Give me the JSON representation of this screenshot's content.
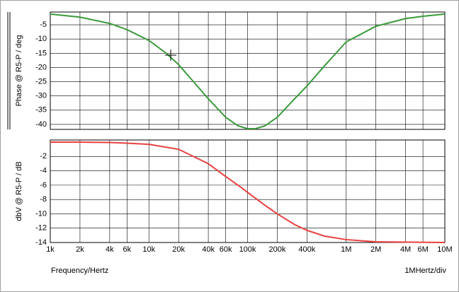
{
  "chart_data": [
    {
      "type": "line",
      "ylabel": "Phase @ R5-P / deg",
      "xscale": "log",
      "grid": true,
      "xlim": [
        1000,
        10000000
      ],
      "ylim": [
        -41.75,
        -0.5
      ],
      "yticks": [
        -5,
        -10,
        -15,
        -20,
        -25,
        -30,
        -35,
        -40
      ],
      "x": [
        1000,
        2000,
        4000,
        6000,
        10000,
        15000,
        20000,
        30000,
        40000,
        60000,
        80000,
        100000,
        120000,
        150000,
        200000,
        300000,
        400000,
        600000,
        1000000,
        2000000,
        4000000,
        6000000,
        10000000
      ],
      "series": [
        {
          "color": "#3a9a3a",
          "values": [
            -1.2,
            -2.3,
            -4.5,
            -6.7,
            -10.5,
            -15,
            -19,
            -26,
            -31,
            -37.5,
            -40.5,
            -41.5,
            -41.5,
            -40.5,
            -37.5,
            -31,
            -26.5,
            -19.5,
            -11,
            -5.5,
            -2.8,
            -2,
            -1.2
          ]
        }
      ]
    },
    {
      "type": "line",
      "ylabel": "dbV @ R5-P / dB",
      "xlabel": "Frequency/Hertz",
      "annotation": "1MHertz/div",
      "xscale": "log",
      "grid": true,
      "xlim": [
        1000,
        10000000
      ],
      "ylim": [
        -14,
        0.3
      ],
      "yticks": [
        -2,
        -4,
        -6,
        -8,
        -10,
        -12,
        -14
      ],
      "xticks": [
        {
          "value": 1000,
          "label": "1k"
        },
        {
          "value": 2000,
          "label": "2k"
        },
        {
          "value": 4000,
          "label": "4k"
        },
        {
          "value": 6000,
          "label": "6k"
        },
        {
          "value": 10000,
          "label": "10k"
        },
        {
          "value": 20000,
          "label": "20k"
        },
        {
          "value": 40000,
          "label": "40k"
        },
        {
          "value": 60000,
          "label": "60k"
        },
        {
          "value": 100000,
          "label": "100k"
        },
        {
          "value": 200000,
          "label": "200k"
        },
        {
          "value": 400000,
          "label": "400k"
        },
        {
          "value": 1000000,
          "label": "1M"
        },
        {
          "value": 2000000,
          "label": "2M"
        },
        {
          "value": 4000000,
          "label": "4M"
        },
        {
          "value": 6000000,
          "label": "6M"
        },
        {
          "value": 10000000,
          "label": "10M"
        }
      ],
      "x": [
        1000,
        2000,
        4000,
        6000,
        10000,
        20000,
        40000,
        60000,
        80000,
        100000,
        150000,
        200000,
        300000,
        400000,
        600000,
        1000000,
        2000000,
        10000000
      ],
      "series": [
        {
          "color": "#e84040",
          "values": [
            0,
            0,
            -0.05,
            -0.15,
            -0.3,
            -1,
            -3,
            -4.8,
            -6,
            -7,
            -8.8,
            -10,
            -11.5,
            -12.3,
            -13.1,
            -13.6,
            -13.9,
            -14
          ]
        }
      ]
    }
  ]
}
